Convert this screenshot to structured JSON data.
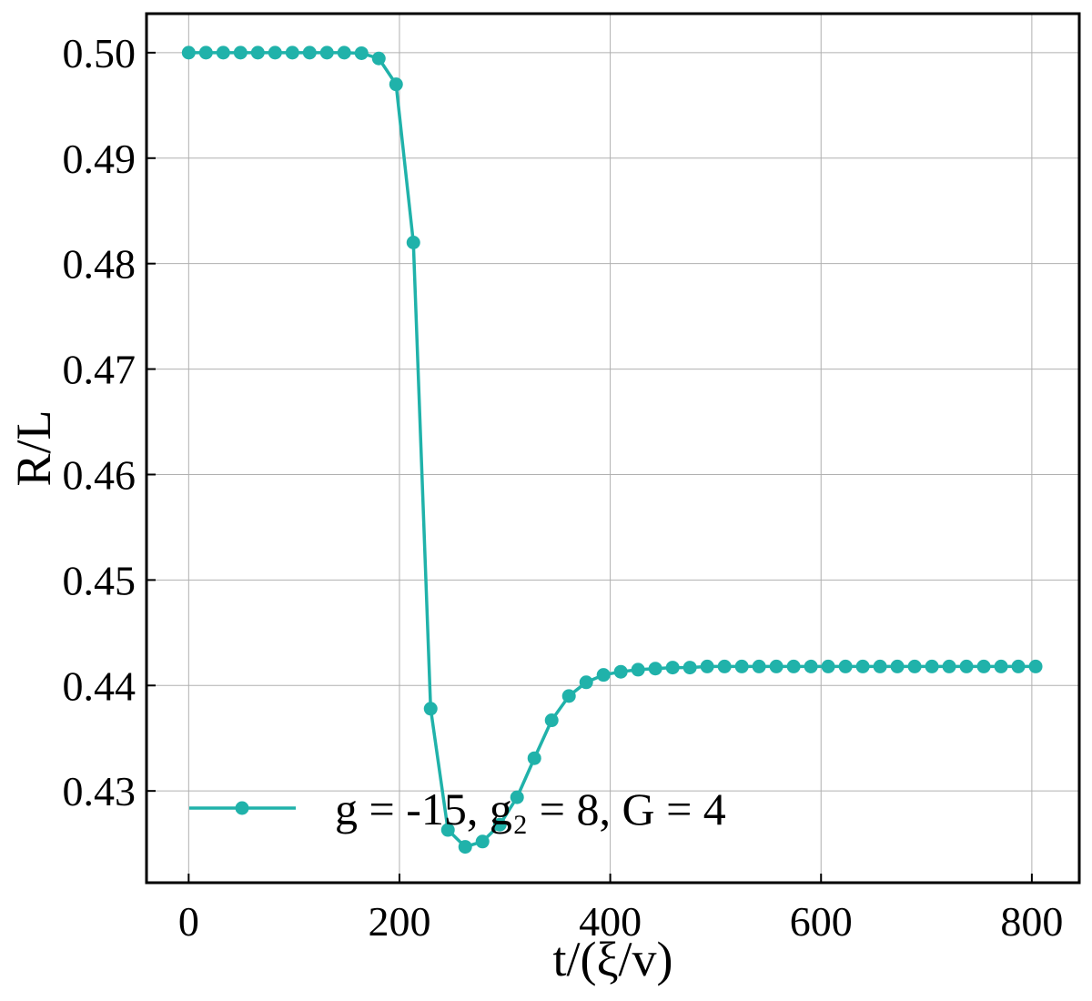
{
  "chart_data": {
    "type": "line",
    "title": "",
    "xlabel": "t/(ξ/v)",
    "ylabel": "R/L",
    "xlim": [
      -40,
      845
    ],
    "ylim": [
      0.4213,
      0.5037
    ],
    "xticks": [
      0,
      200,
      400,
      600,
      800
    ],
    "yticks": [
      0.43,
      0.44,
      0.45,
      0.46,
      0.47,
      0.48,
      0.49,
      0.5
    ],
    "ytick_format": 2,
    "grid": true,
    "legend_position": "lower-left",
    "series": [
      {
        "name": "g = -15, g₂ = 8, G = 4",
        "color": "#20b2aa",
        "marker": "circle",
        "x": [
          0,
          16.4,
          32.8,
          49.2,
          65.6,
          82,
          98.4,
          114.8,
          131.2,
          147.6,
          164,
          180.4,
          196.8,
          213.2,
          229.6,
          246,
          262.4,
          278.8,
          295.2,
          311.6,
          328,
          344.4,
          360.8,
          377.2,
          393.6,
          410,
          426.4,
          442.8,
          459.2,
          475.6,
          492,
          508.4,
          524.8,
          541.2,
          557.6,
          574,
          590.4,
          606.8,
          623.2,
          639.6,
          656,
          672.4,
          688.8,
          705.2,
          721.6,
          738,
          754.4,
          770.8,
          787.2,
          803.6
        ],
        "y": [
          0.5,
          0.5,
          0.5,
          0.5,
          0.5,
          0.5,
          0.5,
          0.5,
          0.5,
          0.5,
          0.49995,
          0.49945,
          0.497,
          0.482,
          0.4378,
          0.4263,
          0.4247,
          0.4252,
          0.4268,
          0.4294,
          0.4331,
          0.4367,
          0.439,
          0.4403,
          0.441,
          0.4413,
          0.4415,
          0.4416,
          0.4417,
          0.4417,
          0.4418,
          0.4418,
          0.4418,
          0.4418,
          0.4418,
          0.4418,
          0.4418,
          0.4418,
          0.4418,
          0.4418,
          0.4418,
          0.4418,
          0.4418,
          0.4418,
          0.4418,
          0.4418,
          0.4418,
          0.4418,
          0.4418,
          0.4418
        ]
      }
    ]
  }
}
